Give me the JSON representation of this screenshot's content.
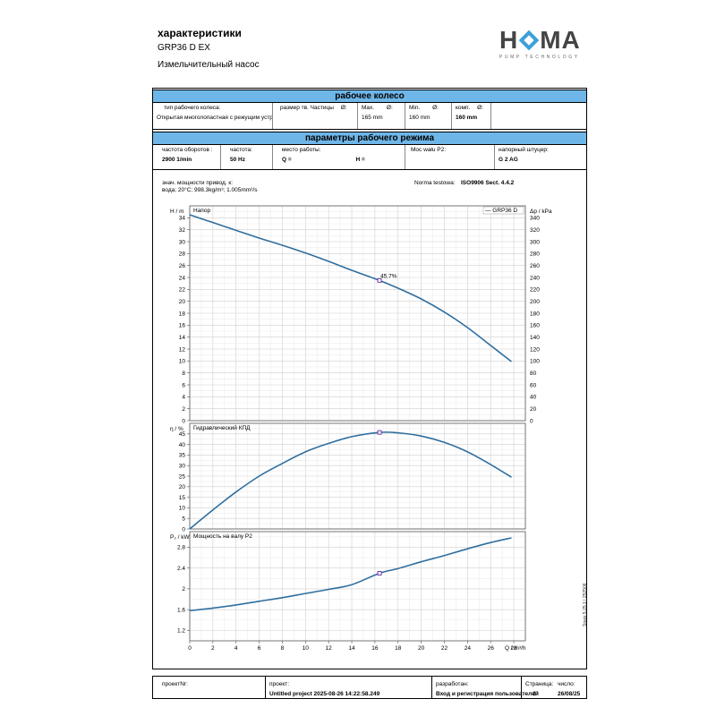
{
  "header": {
    "title": "характеристики",
    "model": "GRP36 D EX",
    "subtitle": "Измельчительный насос",
    "logo_text_left": "H",
    "logo_text_right": "MA",
    "logo_sub": "PUMP TECHNOLOGY",
    "logo_color": "#3da0d8"
  },
  "impeller": {
    "heading": "рабочее колесо",
    "type_label": "тип рабочего колеса:",
    "type_value": "Открытая многолопастная с режущим устройством",
    "solids_label": "размер тв. Частицы",
    "solids_symbol": "Ø:",
    "max_label": "Max.",
    "max_symbol": "Ø:",
    "max_value": "165 mm",
    "min_label": "Min.",
    "min_symbol": "Ø:",
    "min_value": "160 mm",
    "comp_label": "комп.",
    "comp_symbol": "Ø:",
    "comp_value": "160 mm"
  },
  "operating": {
    "heading": "параметры рабочего режима",
    "speed_label": "частота оборотов :",
    "speed_value": "2900 1/min",
    "freq_label": "частота:",
    "freq_value": "50 Hz",
    "duty_label": "место работы:",
    "q_label": "Q =",
    "h_label": "H =",
    "power_label": "Moc wału P2:",
    "outlet_label": "напорный штуцер:",
    "outlet_value": "G 2 AG"
  },
  "notes": {
    "line1": "знач. мощности привод. к:",
    "line2": "вода; 20°C; 998.3kg/m³; 1.005mm²/s",
    "norm_label": "Norma testowa:",
    "norm_value": "ISO9906 Sect. 4.4.2"
  },
  "chart_data": [
    {
      "type": "line",
      "title": "Напор",
      "ylabel": "H / m",
      "ylabel_right": "Δp / kPa",
      "legend": "— GRP36 D",
      "xlim": [
        0,
        29
      ],
      "ylim": [
        0,
        36
      ],
      "yticks": [
        0,
        2,
        4,
        6,
        8,
        10,
        12,
        14,
        16,
        18,
        20,
        22,
        24,
        26,
        28,
        30,
        32,
        34
      ],
      "yticks_right": [
        0,
        20,
        40,
        60,
        80,
        100,
        120,
        140,
        160,
        180,
        200,
        220,
        240,
        260,
        280,
        300,
        320,
        340
      ],
      "x": [
        0,
        2,
        4,
        6,
        8,
        10,
        12,
        14,
        16.4,
        18,
        20,
        22,
        24,
        26,
        27.8
      ],
      "y": [
        34.5,
        33.2,
        31.9,
        30.6,
        29.4,
        28.1,
        26.7,
        25.2,
        23.5,
        22.2,
        20.4,
        18.2,
        15.6,
        12.6,
        9.9
      ],
      "marker": {
        "x": 16.4,
        "y": 23.5,
        "label": "45.7%"
      },
      "series_color": "#2f6e9e"
    },
    {
      "type": "line",
      "title": "Гидравлический КПД",
      "ylabel": "η / %",
      "xlim": [
        0,
        29
      ],
      "ylim": [
        0,
        50
      ],
      "yticks": [
        0,
        5,
        10,
        15,
        20,
        25,
        30,
        35,
        40,
        45
      ],
      "x": [
        0,
        2,
        4,
        6,
        8,
        10,
        12,
        14,
        16.4,
        18,
        20,
        22,
        24,
        26,
        27.8
      ],
      "y": [
        0,
        9,
        17.5,
        25,
        31,
        36.5,
        40.5,
        43.7,
        45.7,
        45.5,
        44,
        41,
        36.5,
        30.5,
        24.5
      ],
      "marker": {
        "x": 16.4,
        "y": 45.7
      },
      "series_color": "#2f6e9e"
    },
    {
      "type": "line",
      "title": "Мощность на валу P2",
      "ylabel": "P₂ / kW",
      "xlabel": "Q / m³/h",
      "xlim": [
        0,
        29
      ],
      "ylim": [
        1,
        3.1
      ],
      "yticks": [
        1.2,
        1.6,
        2,
        2.4,
        2.8
      ],
      "xticks": [
        0,
        2,
        4,
        6,
        8,
        10,
        12,
        14,
        16,
        18,
        20,
        22,
        24,
        26,
        28
      ],
      "x": [
        0,
        2,
        4,
        6,
        8,
        10,
        12,
        14,
        16.4,
        18,
        20,
        22,
        24,
        26,
        27.8
      ],
      "y": [
        1.58,
        1.63,
        1.69,
        1.76,
        1.83,
        1.91,
        1.99,
        2.08,
        2.3,
        2.39,
        2.52,
        2.64,
        2.77,
        2.89,
        2.98
      ],
      "marker": {
        "x": 16.4,
        "y": 2.3
      },
      "series_color": "#2f6e9e"
    }
  ],
  "footer": {
    "project_no_label": "проектNr:",
    "project_label": "проект:",
    "project_value": "Untitled project 2025-08-26 14:22:58.249",
    "author_label": "разработан:",
    "author_value": "Вход и регистрация пользователей",
    "page_label": "Страница:",
    "page_value": "2",
    "date_label": "число:",
    "date_value": "26/08/25"
  },
  "side_text": "Spaix 5.25.1 | 252506"
}
